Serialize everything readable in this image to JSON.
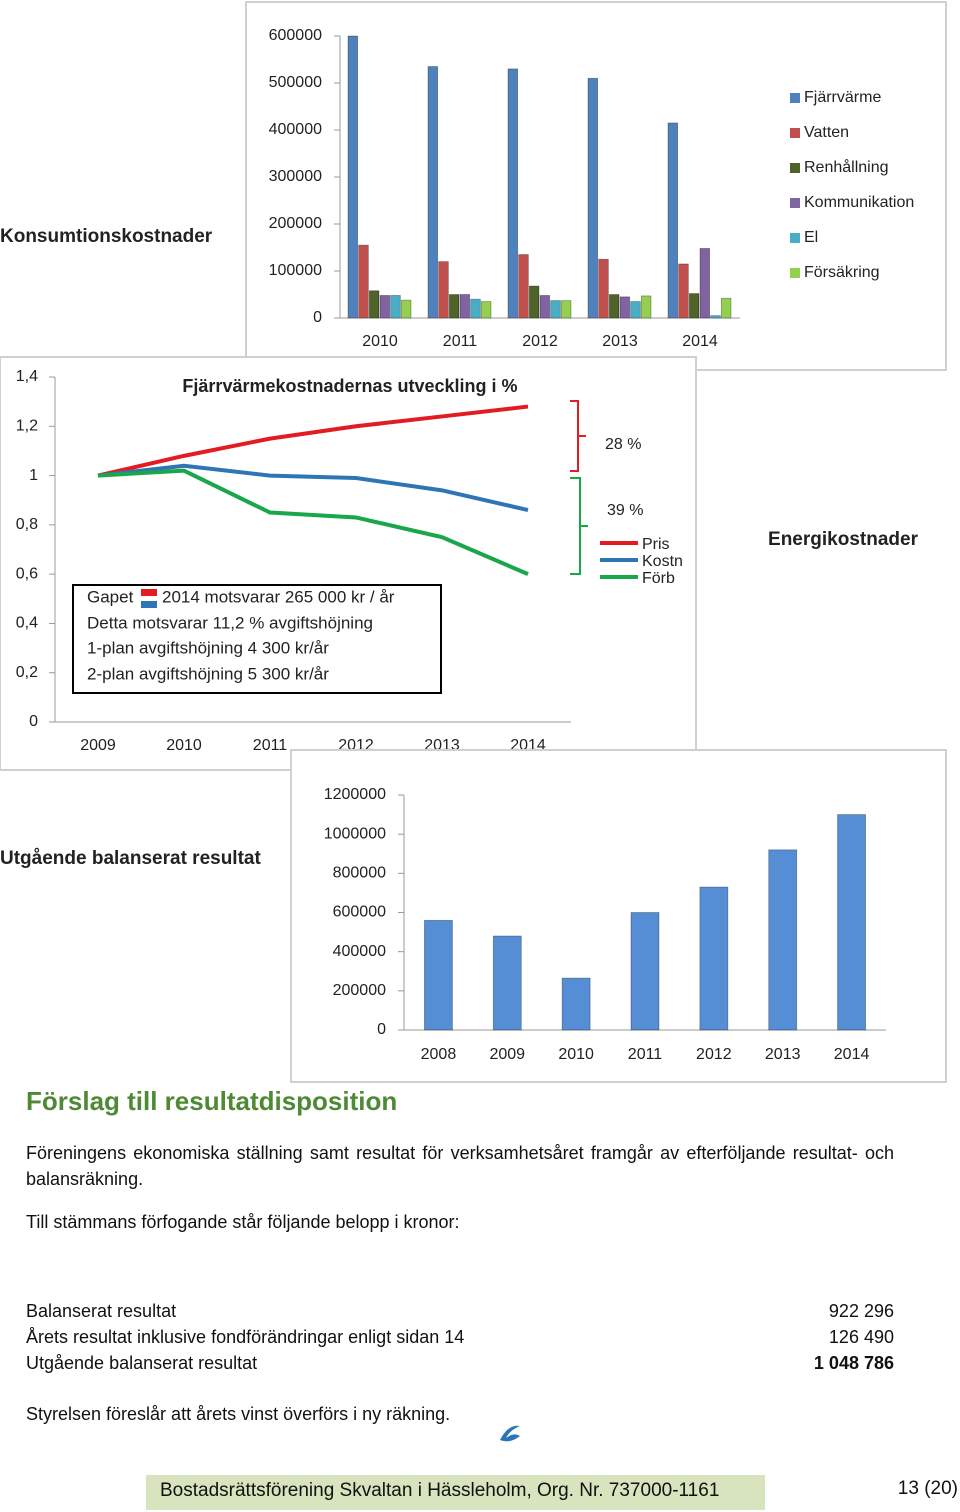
{
  "chart_data": [
    {
      "type": "bar",
      "title": "Konsumtionskostnader",
      "categories": [
        "2010",
        "2011",
        "2012",
        "2013",
        "2014"
      ],
      "series": [
        {
          "name": "Fjärrvärme",
          "color": "#4f81bd",
          "values": [
            600000,
            535000,
            530000,
            510000,
            415000
          ]
        },
        {
          "name": "Vatten",
          "color": "#c0504d",
          "values": [
            155000,
            120000,
            135000,
            125000,
            115000
          ]
        },
        {
          "name": "Renhållning",
          "color": "#4f6228",
          "values": [
            58000,
            50000,
            68000,
            50000,
            52000
          ]
        },
        {
          "name": "Kommunikation",
          "color": "#8064a2",
          "values": [
            48000,
            50000,
            48000,
            45000,
            148000
          ]
        },
        {
          "name": "El",
          "color": "#4bacc6",
          "values": [
            48000,
            40000,
            37000,
            35000,
            5000
          ]
        },
        {
          "name": "Försäkring",
          "color": "#92d050",
          "values": [
            38000,
            35000,
            37000,
            47000,
            42000
          ]
        }
      ],
      "ylim": [
        0,
        600000
      ],
      "yticks": [
        0,
        100000,
        200000,
        300000,
        400000,
        500000,
        600000
      ],
      "legend": "right"
    },
    {
      "type": "line",
      "title": "Fjärrvärmekostnadernas utveckling i %",
      "subtitle": "Energikostnader",
      "categories": [
        "2009",
        "2010",
        "2011",
        "2012",
        "2013",
        "2014"
      ],
      "series": [
        {
          "name": "Pris",
          "color": "#e31b23",
          "values": [
            1,
            1.08,
            1.15,
            1.2,
            1.24,
            1.28
          ]
        },
        {
          "name": "Kostn",
          "color": "#2e75b6",
          "values": [
            1,
            1.04,
            1.0,
            0.99,
            0.94,
            0.86
          ]
        },
        {
          "name": "Förb",
          "color": "#1aa64a",
          "values": [
            1,
            1.02,
            0.85,
            0.83,
            0.75,
            0.6
          ]
        }
      ],
      "ylim": [
        0,
        1.4
      ],
      "yticks": [
        0,
        {
          "value": 0.2,
          "label": "0,2"
        },
        {
          "value": 0.4,
          "label": "0,4"
        },
        {
          "value": 0.6,
          "label": "0,6"
        },
        {
          "value": 0.8,
          "label": "0,8"
        },
        1,
        {
          "value": 1.2,
          "label": "1,2"
        },
        {
          "value": 1.4,
          "label": "1,4"
        }
      ],
      "annotations": [
        "28 %",
        "39 %"
      ],
      "note_box": [
        "Gapet",
        "2014 motsvarar 265 000 kr / år",
        "Detta motsvarar 11,2 % avgiftshöjning",
        "1-plan avgiftshöjning 4 300 kr/år",
        "2-plan avgiftshöjning 5 300 kr/år"
      ],
      "legend": "right"
    },
    {
      "type": "bar",
      "title": "Utgående balanserat resultat",
      "categories": [
        "2008",
        "2009",
        "2010",
        "2011",
        "2012",
        "2013",
        "2014"
      ],
      "values": [
        560000,
        480000,
        265000,
        600000,
        730000,
        920000,
        1100000
      ],
      "color": "#558ed5",
      "ylim": [
        0,
        1200000
      ],
      "yticks": [
        0,
        200000,
        400000,
        600000,
        800000,
        1000000,
        1200000
      ]
    }
  ],
  "document": {
    "heading": "Förslag till resultatdisposition",
    "paragraphs": [
      "Föreningens ekonomiska ställning samt resultat för verksamhetsåret framgår av efterföljande resultat- och balansräkning.",
      "Till stämmans förfogande står följande belopp i kronor:"
    ],
    "table": {
      "rows": [
        [
          "Balanserat resultat",
          "922 296"
        ],
        [
          "Årets resultat inklusive fondförändringar enligt sidan 14",
          "126 490"
        ],
        [
          "Utgående balanserat resultat",
          "1 048 786"
        ]
      ]
    },
    "closing": "Styrelsen föreslår att årets vinst överförs i ny räkning.",
    "footer": "Bostadsrättsförening Skvaltan i Hässleholm, Org. Nr. 737000-1161",
    "page_number": "13 (20)"
  }
}
